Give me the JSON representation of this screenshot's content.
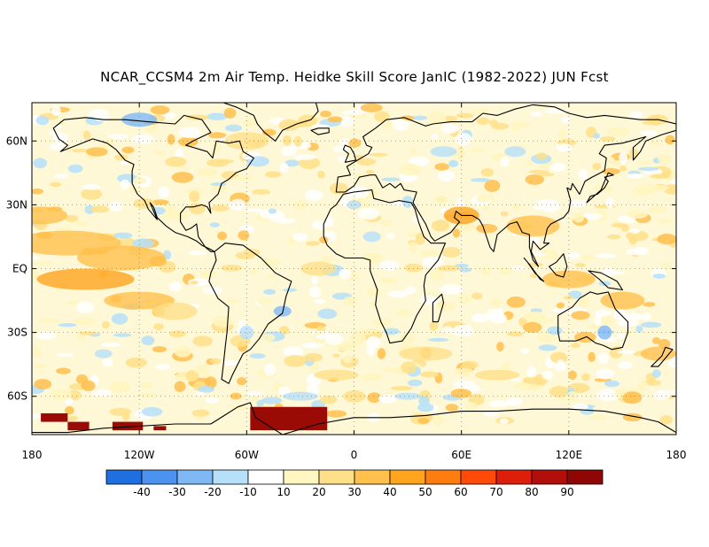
{
  "title": "NCAR_CCSM4 2m Air Temp. Heidke Skill Score JanIC (1982-2022) JUN Fcst",
  "map": {
    "projection": "cylindrical equidistant",
    "lon_range": [
      -180,
      180
    ],
    "lat_range": [
      -78,
      78
    ],
    "grid_lines": "dotted",
    "lat_ticks": [
      {
        "value": 60,
        "label": "60N"
      },
      {
        "value": 30,
        "label": "30N"
      },
      {
        "value": 0,
        "label": "EQ"
      },
      {
        "value": -30,
        "label": "30S"
      },
      {
        "value": -60,
        "label": "60S"
      }
    ],
    "lon_ticks": [
      {
        "value": -180,
        "label": "180"
      },
      {
        "value": -120,
        "label": "120W"
      },
      {
        "value": -60,
        "label": "60W"
      },
      {
        "value": 0,
        "label": "0"
      },
      {
        "value": 60,
        "label": "60E"
      },
      {
        "value": 120,
        "label": "120E"
      },
      {
        "value": 180,
        "label": "180"
      }
    ]
  },
  "colorbar": {
    "labels": [
      "-40",
      "-30",
      "-20",
      "-10",
      "10",
      "20",
      "30",
      "40",
      "50",
      "60",
      "70",
      "80",
      "90"
    ],
    "colors": [
      "#1f6fe0",
      "#4c93f0",
      "#80b8f6",
      "#b6e0fa",
      "#ffffff",
      "#fff6c0",
      "#ffe08a",
      "#ffc04d",
      "#ffa41e",
      "#ff7d0f",
      "#ff4a0a",
      "#dc1e0a",
      "#b30f0a",
      "#8f0704"
    ]
  }
}
